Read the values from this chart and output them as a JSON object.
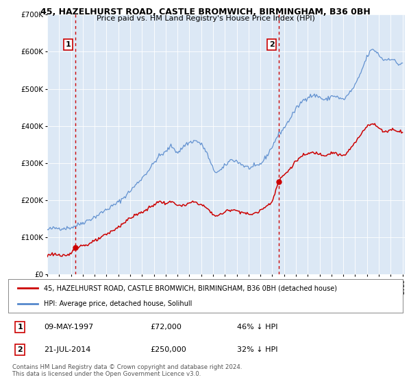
{
  "title": "45, HAZELHURST ROAD, CASTLE BROMWICH, BIRMINGHAM, B36 0BH",
  "subtitle": "Price paid vs. HM Land Registry's House Price Index (HPI)",
  "legend_line1": "45, HAZELHURST ROAD, CASTLE BROMWICH, BIRMINGHAM, B36 0BH (detached house)",
  "legend_line2": "HPI: Average price, detached house, Solihull",
  "sale1_label": "1",
  "sale1_date": "09-MAY-1997",
  "sale1_price": "£72,000",
  "sale1_hpi": "46% ↓ HPI",
  "sale1_year": 1997.36,
  "sale1_value": 72000,
  "sale2_label": "2",
  "sale2_date": "21-JUL-2014",
  "sale2_price": "£250,000",
  "sale2_hpi": "32% ↓ HPI",
  "sale2_year": 2014.55,
  "sale2_value": 250000,
  "hpi_color": "#5588cc",
  "price_color": "#cc0000",
  "vline_color": "#cc0000",
  "bg_color": "#dce8f5",
  "plot_bg": "#ffffff",
  "grid_color": "#ffffff",
  "ylim": [
    0,
    700000
  ],
  "xlim_start": 1995.0,
  "xlim_end": 2025.2,
  "footer": "Contains HM Land Registry data © Crown copyright and database right 2024.\nThis data is licensed under the Open Government Licence v3.0."
}
